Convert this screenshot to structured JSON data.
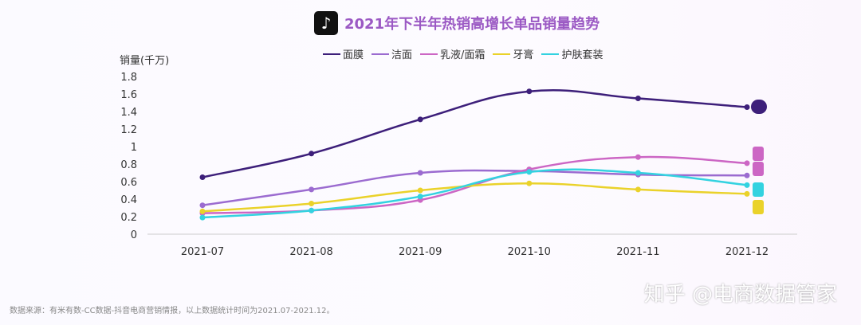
{
  "title": "2021年下半年热销高增长单品销量趋势",
  "logo": "tiktok-logo",
  "source": "数据来源：有米有数-CC数据-抖音电商营销情报，以上数据统计时间为2021.07-2021.12。",
  "watermark": "知乎 @电商数据管家",
  "chart_data": {
    "type": "line",
    "title": "2021年下半年热销高增长单品销量趋势",
    "ylabel": "销量(千万)",
    "xlabel": "",
    "ylim": [
      0,
      1.8
    ],
    "yticks": [
      "0",
      "0.2",
      "0.4",
      "0.6",
      "0.8",
      "1",
      "1.2",
      "1.4",
      "1.6",
      "1.8"
    ],
    "categories": [
      "2021-07",
      "2021-08",
      "2021-09",
      "2021-10",
      "2021-11",
      "2021-12"
    ],
    "legend_position": "top",
    "grid": false,
    "series": [
      {
        "name": "面膜",
        "color": "#3d1f7a",
        "values": [
          0.65,
          0.92,
          1.31,
          1.63,
          1.55,
          1.45
        ]
      },
      {
        "name": "洁面",
        "color": "#9b6bd0",
        "values": [
          0.33,
          0.51,
          0.7,
          0.72,
          0.68,
          0.67
        ]
      },
      {
        "name": "乳液/面霜",
        "color": "#cc66c4",
        "values": [
          0.24,
          0.27,
          0.39,
          0.74,
          0.88,
          0.81
        ]
      },
      {
        "name": "牙膏",
        "color": "#ead22a",
        "values": [
          0.26,
          0.35,
          0.5,
          0.58,
          0.51,
          0.46
        ]
      },
      {
        "name": "护肤套装",
        "color": "#33d2e0",
        "values": [
          0.19,
          0.27,
          0.43,
          0.71,
          0.7,
          0.56
        ]
      }
    ]
  }
}
